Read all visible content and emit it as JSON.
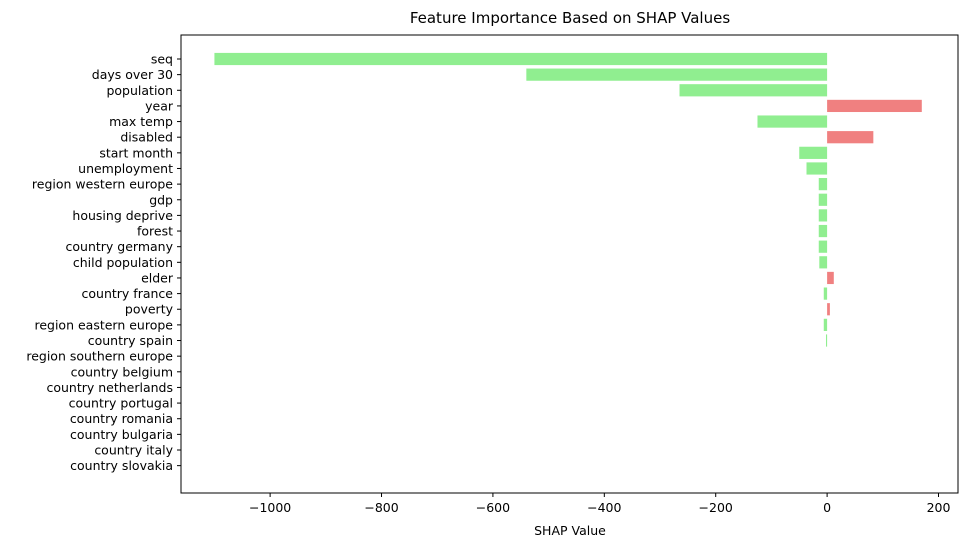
{
  "chart_data": {
    "type": "bar",
    "orientation": "horizontal",
    "title": "Feature Importance Based on SHAP Values",
    "xlabel": "SHAP Value",
    "ylabel": "",
    "xlim": [
      -1160,
      235
    ],
    "xticks": [
      -1000,
      -800,
      -600,
      -400,
      -200,
      0,
      200
    ],
    "xtick_labels": [
      "−1000",
      "−800",
      "−600",
      "−400",
      "−200",
      "0",
      "200"
    ],
    "grid": false,
    "colors": {
      "negative": "#90ee90",
      "positive": "#f08080"
    },
    "categories": [
      "seq",
      "days over 30",
      "population",
      "year",
      "max temp",
      "disabled",
      "start month",
      "unemployment",
      "region western europe",
      "gdp",
      "housing deprive",
      "forest",
      "country germany",
      "child population",
      "elder",
      "country france",
      "poverty",
      "region eastern europe",
      "country spain",
      "region southern europe",
      "country belgium",
      "country netherlands",
      "country portugal",
      "country romania",
      "country bulgaria",
      "country italy",
      "country slovakia"
    ],
    "values": [
      -1100,
      -540,
      -265,
      170,
      -125,
      83,
      -50,
      -37,
      -15,
      -15,
      -15,
      -15,
      -15,
      -14,
      12,
      -6,
      5,
      -6,
      -2,
      0,
      0,
      0,
      0,
      0,
      0,
      0,
      0
    ]
  }
}
